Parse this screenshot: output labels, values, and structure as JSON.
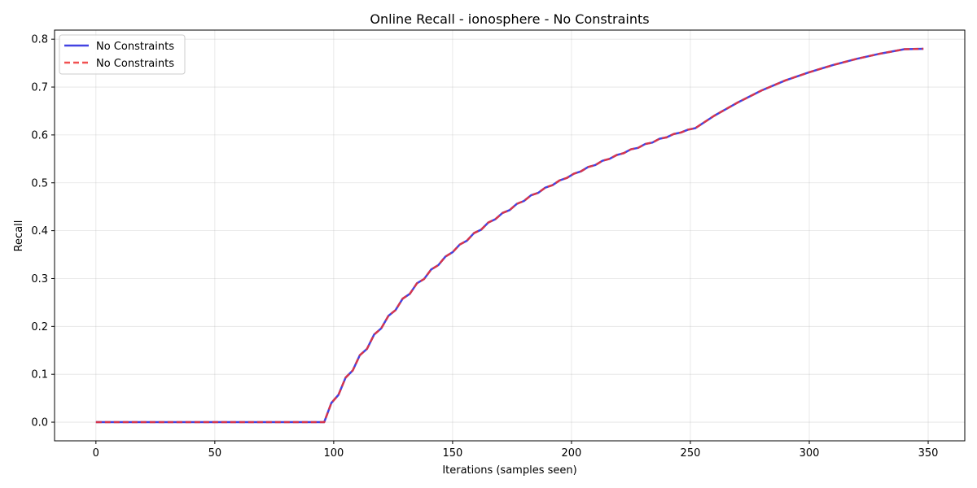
{
  "chart_data": {
    "type": "line",
    "title": "Online Recall - ionosphere - No Constraints",
    "xlabel": "Iterations (samples seen)",
    "ylabel": "Recall",
    "xlim": [
      -17.4,
      365.4
    ],
    "ylim": [
      -0.039,
      0.819
    ],
    "xticks": [
      0,
      50,
      100,
      150,
      200,
      250,
      300,
      350
    ],
    "yticks": [
      0.0,
      0.1,
      0.2,
      0.3,
      0.4,
      0.5,
      0.6,
      0.7,
      0.8
    ],
    "xtick_labels": [
      "0",
      "50",
      "100",
      "150",
      "200",
      "250",
      "300",
      "350"
    ],
    "ytick_labels": [
      "0.0",
      "0.1",
      "0.2",
      "0.3",
      "0.4",
      "0.5",
      "0.6",
      "0.7",
      "0.8"
    ],
    "grid": true,
    "legend_position": "top-left",
    "series": [
      {
        "name": "No Constraints",
        "color": "#2222dd",
        "style": "solid",
        "x": [
          0,
          96,
          99,
          102,
          105,
          108,
          111,
          114,
          117,
          120,
          123,
          126,
          129,
          132,
          135,
          138,
          141,
          144,
          147,
          150,
          153,
          156,
          159,
          162,
          165,
          168,
          171,
          174,
          177,
          180,
          183,
          186,
          189,
          192,
          195,
          198,
          201,
          204,
          207,
          210,
          213,
          216,
          219,
          222,
          225,
          228,
          231,
          234,
          237,
          240,
          243,
          246,
          249,
          252,
          260,
          270,
          280,
          290,
          300,
          310,
          320,
          330,
          340,
          348
        ],
        "y": [
          0.0,
          0.0,
          0.04,
          0.057,
          0.093,
          0.108,
          0.14,
          0.153,
          0.183,
          0.196,
          0.222,
          0.234,
          0.258,
          0.268,
          0.29,
          0.299,
          0.319,
          0.328,
          0.346,
          0.355,
          0.371,
          0.379,
          0.395,
          0.402,
          0.417,
          0.424,
          0.437,
          0.443,
          0.456,
          0.462,
          0.474,
          0.479,
          0.49,
          0.495,
          0.505,
          0.51,
          0.519,
          0.524,
          0.533,
          0.537,
          0.546,
          0.55,
          0.558,
          0.562,
          0.57,
          0.573,
          0.581,
          0.584,
          0.592,
          0.595,
          0.602,
          0.605,
          0.611,
          0.614,
          0.64,
          0.668,
          0.693,
          0.714,
          0.731,
          0.746,
          0.759,
          0.77,
          0.779,
          0.78
        ]
      },
      {
        "name": "No Constraints",
        "color": "#ee3333",
        "style": "dashed",
        "x": [
          0,
          96,
          99,
          102,
          105,
          108,
          111,
          114,
          117,
          120,
          123,
          126,
          129,
          132,
          135,
          138,
          141,
          144,
          147,
          150,
          153,
          156,
          159,
          162,
          165,
          168,
          171,
          174,
          177,
          180,
          183,
          186,
          189,
          192,
          195,
          198,
          201,
          204,
          207,
          210,
          213,
          216,
          219,
          222,
          225,
          228,
          231,
          234,
          237,
          240,
          243,
          246,
          249,
          252,
          260,
          270,
          280,
          290,
          300,
          310,
          320,
          330,
          340,
          348
        ],
        "y": [
          0.0,
          0.0,
          0.04,
          0.057,
          0.093,
          0.108,
          0.14,
          0.153,
          0.183,
          0.196,
          0.222,
          0.234,
          0.258,
          0.268,
          0.29,
          0.299,
          0.319,
          0.328,
          0.346,
          0.355,
          0.371,
          0.379,
          0.395,
          0.402,
          0.417,
          0.424,
          0.437,
          0.443,
          0.456,
          0.462,
          0.474,
          0.479,
          0.49,
          0.495,
          0.505,
          0.51,
          0.519,
          0.524,
          0.533,
          0.537,
          0.546,
          0.55,
          0.558,
          0.562,
          0.57,
          0.573,
          0.581,
          0.584,
          0.592,
          0.595,
          0.602,
          0.605,
          0.611,
          0.614,
          0.64,
          0.668,
          0.693,
          0.714,
          0.731,
          0.746,
          0.759,
          0.77,
          0.779,
          0.78
        ]
      }
    ]
  }
}
